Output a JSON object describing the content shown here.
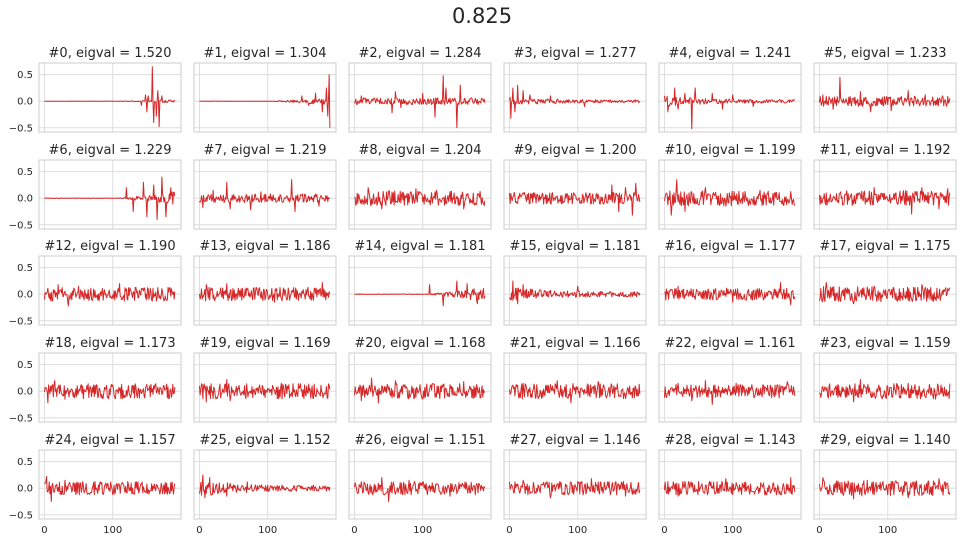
{
  "chart_data": {
    "type": "line",
    "suptitle": "0.825",
    "line_color": "#d62728",
    "frame_color": "#cccccc",
    "grid_color": "#dddddd",
    "grid": true,
    "layout": {
      "rows": 5,
      "cols": 6
    },
    "xlim": [
      -8,
      200
    ],
    "ylim": [
      -0.58,
      0.72
    ],
    "yticks": [
      0.5,
      0.0,
      -0.5
    ],
    "ytick_labels": [
      "0.5",
      "0.0",
      "−0.5"
    ],
    "xticks": [
      0,
      100
    ],
    "xtick_labels": [
      "0",
      "100"
    ],
    "n_points": 192,
    "panels": [
      {
        "title": "#0, eigval = 1.520",
        "profile": "late",
        "amp": 0.02,
        "spikes": [
          [
            142,
            -0.08
          ],
          [
            148,
            0.12
          ],
          [
            150,
            -0.2
          ],
          [
            152,
            0.1
          ],
          [
            158,
            0.65
          ],
          [
            160,
            -0.4
          ],
          [
            164,
            -0.28
          ],
          [
            166,
            0.2
          ],
          [
            168,
            -0.48
          ],
          [
            172,
            0.1
          ]
        ]
      },
      {
        "title": "#1, eigval = 1.304",
        "profile": "late",
        "amp": 0.05,
        "spikes": [
          [
            150,
            0.1
          ],
          [
            160,
            -0.08
          ],
          [
            170,
            0.15
          ],
          [
            180,
            -0.2
          ],
          [
            186,
            0.25
          ],
          [
            188,
            -0.28
          ],
          [
            190,
            0.5
          ],
          [
            191,
            -0.5
          ]
        ]
      },
      {
        "title": "#2, eigval = 1.284",
        "profile": "uniform",
        "amp": 0.04,
        "spikes": [
          [
            10,
            0.1
          ],
          [
            55,
            -0.22
          ],
          [
            60,
            0.18
          ],
          [
            68,
            -0.12
          ],
          [
            100,
            0.15
          ],
          [
            118,
            -0.3
          ],
          [
            130,
            0.48
          ],
          [
            134,
            0.25
          ],
          [
            150,
            -0.5
          ],
          [
            155,
            0.3
          ]
        ]
      },
      {
        "title": "#3, eigval = 1.277",
        "profile": "early",
        "amp": 0.04,
        "spikes": [
          [
            2,
            -0.32
          ],
          [
            5,
            0.25
          ],
          [
            8,
            -0.2
          ],
          [
            12,
            0.3
          ],
          [
            20,
            0.2
          ],
          [
            30,
            0.12
          ],
          [
            60,
            0.1
          ],
          [
            110,
            -0.1
          ]
        ]
      },
      {
        "title": "#4, eigval = 1.241",
        "profile": "early",
        "amp": 0.05,
        "spikes": [
          [
            5,
            -0.2
          ],
          [
            15,
            0.25
          ],
          [
            20,
            -0.15
          ],
          [
            30,
            0.15
          ],
          [
            40,
            -0.52
          ],
          [
            45,
            0.25
          ],
          [
            70,
            0.15
          ],
          [
            85,
            -0.15
          ],
          [
            100,
            0.12
          ],
          [
            130,
            -0.1
          ]
        ]
      },
      {
        "title": "#5, eigval = 1.233",
        "profile": "uniform",
        "amp": 0.06,
        "spikes": [
          [
            5,
            0.12
          ],
          [
            20,
            -0.15
          ],
          [
            30,
            0.45
          ],
          [
            60,
            0.18
          ],
          [
            75,
            -0.2
          ],
          [
            105,
            -0.18
          ],
          [
            130,
            0.2
          ],
          [
            155,
            0.12
          ],
          [
            180,
            0.1
          ]
        ]
      },
      {
        "title": "#6, eigval = 1.229",
        "profile": "late",
        "amp": 0.08,
        "spikes": [
          [
            120,
            0.2
          ],
          [
            130,
            -0.25
          ],
          [
            145,
            0.3
          ],
          [
            150,
            -0.35
          ],
          [
            160,
            0.25
          ],
          [
            165,
            -0.4
          ],
          [
            172,
            0.4
          ],
          [
            178,
            -0.35
          ],
          [
            185,
            0.2
          ]
        ]
      },
      {
        "title": "#7, eigval = 1.219",
        "profile": "uniform",
        "amp": 0.05,
        "spikes": [
          [
            5,
            -0.18
          ],
          [
            20,
            0.15
          ],
          [
            40,
            0.3
          ],
          [
            45,
            -0.2
          ],
          [
            75,
            -0.22
          ],
          [
            90,
            0.12
          ],
          [
            135,
            0.35
          ],
          [
            140,
            -0.25
          ],
          [
            175,
            -0.15
          ]
        ]
      },
      {
        "title": "#8, eigval = 1.204",
        "profile": "uniform",
        "amp": 0.09,
        "spikes": [
          [
            20,
            0.2
          ],
          [
            40,
            -0.2
          ],
          [
            90,
            0.18
          ],
          [
            120,
            0.15
          ],
          [
            160,
            -0.2
          ]
        ]
      },
      {
        "title": "#9, eigval = 1.200",
        "profile": "uniform",
        "amp": 0.07,
        "spikes": [
          [
            150,
            0.25
          ],
          [
            160,
            -0.25
          ],
          [
            170,
            0.2
          ],
          [
            180,
            -0.32
          ],
          [
            185,
            0.28
          ]
        ]
      },
      {
        "title": "#10, eigval = 1.199",
        "profile": "uniform",
        "amp": 0.09,
        "spikes": [
          [
            10,
            -0.32
          ],
          [
            18,
            0.35
          ],
          [
            30,
            -0.25
          ],
          [
            60,
            0.2
          ],
          [
            90,
            -0.15
          ],
          [
            140,
            0.15
          ]
        ]
      },
      {
        "title": "#11, eigval = 1.192",
        "profile": "uniform",
        "amp": 0.09,
        "spikes": [
          [
            80,
            0.2
          ],
          [
            135,
            -0.3
          ],
          [
            150,
            0.2
          ],
          [
            175,
            -0.2
          ],
          [
            188,
            0.18
          ]
        ]
      },
      {
        "title": "#12, eigval = 1.190",
        "profile": "uniform",
        "amp": 0.08,
        "spikes": [
          [
            20,
            0.18
          ],
          [
            35,
            -0.22
          ],
          [
            50,
            0.15
          ],
          [
            110,
            0.2
          ]
        ]
      },
      {
        "title": "#13, eigval = 1.186",
        "profile": "uniform",
        "amp": 0.08,
        "spikes": [
          [
            10,
            0.18
          ],
          [
            40,
            0.2
          ],
          [
            110,
            -0.15
          ],
          [
            180,
            0.22
          ]
        ]
      },
      {
        "title": "#14, eigval = 1.181",
        "profile": "late",
        "amp": 0.09,
        "spikes": [
          [
            110,
            0.18
          ],
          [
            130,
            -0.22
          ],
          [
            150,
            0.25
          ],
          [
            165,
            0.2
          ],
          [
            180,
            -0.18
          ]
        ]
      },
      {
        "title": "#15, eigval = 1.181",
        "profile": "early",
        "amp": 0.07,
        "spikes": [
          [
            5,
            0.25
          ],
          [
            12,
            -0.18
          ],
          [
            20,
            0.18
          ],
          [
            100,
            0.15
          ]
        ]
      },
      {
        "title": "#16, eigval = 1.177",
        "profile": "uniform",
        "amp": 0.07,
        "spikes": [
          [
            20,
            0.15
          ],
          [
            100,
            -0.15
          ],
          [
            170,
            0.22
          ],
          [
            185,
            -0.2
          ]
        ]
      },
      {
        "title": "#17, eigval = 1.175",
        "profile": "uniform",
        "amp": 0.09,
        "spikes": [
          [
            10,
            0.22
          ],
          [
            50,
            -0.18
          ],
          [
            80,
            0.15
          ],
          [
            150,
            0.18
          ]
        ]
      },
      {
        "title": "#18, eigval = 1.173",
        "profile": "uniform",
        "amp": 0.09,
        "spikes": [
          [
            5,
            -0.22
          ],
          [
            15,
            0.2
          ],
          [
            30,
            -0.15
          ],
          [
            100,
            0.12
          ]
        ]
      },
      {
        "title": "#19, eigval = 1.169",
        "profile": "uniform",
        "amp": 0.09,
        "spikes": [
          [
            10,
            -0.2
          ],
          [
            40,
            0.22
          ],
          [
            45,
            -0.18
          ],
          [
            120,
            0.15
          ]
        ]
      },
      {
        "title": "#20, eigval = 1.168",
        "profile": "uniform",
        "amp": 0.09,
        "spikes": [
          [
            10,
            -0.18
          ],
          [
            25,
            0.25
          ],
          [
            35,
            -0.22
          ],
          [
            60,
            0.2
          ],
          [
            100,
            -0.15
          ],
          [
            160,
            0.18
          ]
        ]
      },
      {
        "title": "#21, eigval = 1.166",
        "profile": "uniform",
        "amp": 0.09,
        "spikes": [
          [
            20,
            0.15
          ],
          [
            70,
            0.2
          ],
          [
            90,
            -0.22
          ],
          [
            130,
            0.18
          ]
        ]
      },
      {
        "title": "#22, eigval = 1.161",
        "profile": "uniform",
        "amp": 0.08,
        "spikes": [
          [
            20,
            0.15
          ],
          [
            40,
            -0.18
          ],
          [
            60,
            0.2
          ],
          [
            70,
            -0.25
          ],
          [
            105,
            0.15
          ],
          [
            180,
            0.18
          ]
        ]
      },
      {
        "title": "#23, eigval = 1.159",
        "profile": "uniform",
        "amp": 0.09,
        "spikes": [
          [
            50,
            -0.2
          ],
          [
            60,
            0.22
          ],
          [
            130,
            0.15
          ],
          [
            170,
            -0.15
          ]
        ]
      },
      {
        "title": "#24, eigval = 1.157",
        "profile": "uniform",
        "amp": 0.08,
        "spikes": [
          [
            3,
            0.22
          ],
          [
            10,
            -0.25
          ],
          [
            30,
            0.15
          ],
          [
            100,
            -0.12
          ]
        ]
      },
      {
        "title": "#25, eigval = 1.152",
        "profile": "early",
        "amp": 0.08,
        "spikes": [
          [
            5,
            0.25
          ],
          [
            8,
            -0.18
          ],
          [
            15,
            0.2
          ],
          [
            40,
            -0.15
          ],
          [
            70,
            0.12
          ]
        ]
      },
      {
        "title": "#26, eigval = 1.151",
        "profile": "uniform",
        "amp": 0.08,
        "spikes": [
          [
            40,
            0.2
          ],
          [
            50,
            -0.25
          ],
          [
            80,
            0.15
          ],
          [
            140,
            -0.15
          ]
        ]
      },
      {
        "title": "#27, eigval = 1.146",
        "profile": "uniform",
        "amp": 0.08,
        "spikes": [
          [
            20,
            0.15
          ],
          [
            60,
            -0.18
          ],
          [
            120,
            0.18
          ],
          [
            170,
            -0.15
          ]
        ]
      },
      {
        "title": "#28, eigval = 1.143",
        "profile": "uniform",
        "amp": 0.08,
        "spikes": [
          [
            20,
            -0.15
          ],
          [
            90,
            0.18
          ],
          [
            150,
            -0.12
          ],
          [
            185,
            0.2
          ]
        ]
      },
      {
        "title": "#29, eigval = 1.140",
        "profile": "uniform",
        "amp": 0.09,
        "spikes": [
          [
            5,
            0.2
          ],
          [
            50,
            -0.2
          ],
          [
            70,
            0.15
          ],
          [
            130,
            -0.18
          ],
          [
            175,
            0.18
          ]
        ]
      }
    ]
  }
}
